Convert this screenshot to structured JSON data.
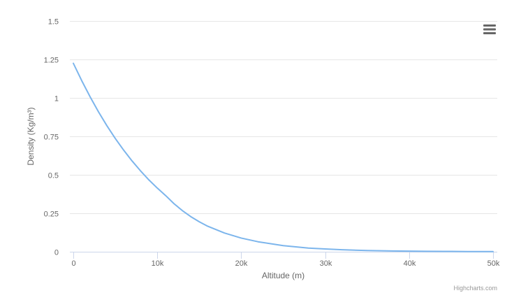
{
  "chart_data": {
    "type": "line",
    "title": "",
    "xlabel": "Altitude (m)",
    "ylabel": "Density (Kg/m³)",
    "xlim": [
      0,
      50000
    ],
    "ylim": [
      0,
      1.5
    ],
    "x_ticks": [
      {
        "value": 0,
        "label": "0"
      },
      {
        "value": 10000,
        "label": "10k"
      },
      {
        "value": 20000,
        "label": "20k"
      },
      {
        "value": 30000,
        "label": "30k"
      },
      {
        "value": 40000,
        "label": "40k"
      },
      {
        "value": 50000,
        "label": "50k"
      }
    ],
    "y_ticks": [
      {
        "value": 0,
        "label": "0"
      },
      {
        "value": 0.25,
        "label": "0.25"
      },
      {
        "value": 0.5,
        "label": "0.5"
      },
      {
        "value": 0.75,
        "label": "0.75"
      },
      {
        "value": 1,
        "label": "1"
      },
      {
        "value": 1.25,
        "label": "1.25"
      },
      {
        "value": 1.5,
        "label": "1.5"
      }
    ],
    "grid": true,
    "legend": "none",
    "series": [
      {
        "color": "#7cb5ec",
        "x": [
          0,
          1000,
          2000,
          3000,
          4000,
          5000,
          6000,
          7000,
          8000,
          9000,
          10000,
          11000,
          12000,
          13000,
          14000,
          15000,
          16000,
          18000,
          20000,
          22000,
          25000,
          28000,
          30000,
          32000,
          35000,
          38000,
          40000,
          42000,
          45000,
          47000,
          50000
        ],
        "values": [
          1.225,
          1.112,
          1.007,
          0.909,
          0.819,
          0.736,
          0.66,
          0.59,
          0.526,
          0.467,
          0.414,
          0.365,
          0.312,
          0.267,
          0.228,
          0.195,
          0.166,
          0.122,
          0.089,
          0.065,
          0.04,
          0.024,
          0.018,
          0.013,
          0.008,
          0.005,
          0.004,
          0.003,
          0.002,
          0.0014,
          0.001
        ]
      }
    ]
  },
  "menu": {
    "icon": "hamburger-menu-icon"
  },
  "credits": {
    "text": "Highcharts.com"
  }
}
